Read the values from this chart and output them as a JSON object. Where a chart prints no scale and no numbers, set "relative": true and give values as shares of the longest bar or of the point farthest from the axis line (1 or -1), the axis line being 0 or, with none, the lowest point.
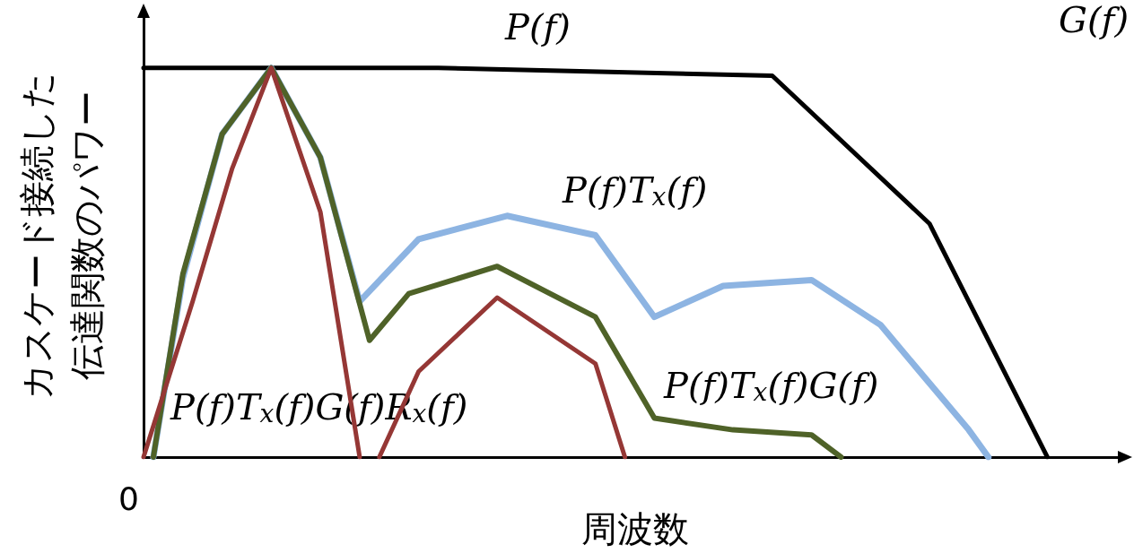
{
  "chart_data": {
    "type": "line",
    "relative": true,
    "xlabel": "周波数",
    "ylabel": "カスケード接続した伝達関数のパワー",
    "legend": false,
    "grid": false,
    "marker": "none",
    "line_style": "solid",
    "annotations": [
      "G(f)",
      "0"
    ],
    "categories": [
      null,
      null,
      null,
      null,
      null,
      null,
      null,
      null,
      null,
      null,
      null,
      null,
      null,
      null,
      null,
      null,
      null,
      null,
      null,
      null,
      null,
      null,
      null,
      null,
      null,
      null,
      null,
      null,
      null,
      null,
      null,
      null,
      null,
      null,
      null,
      null,
      null,
      null,
      null,
      null,
      null,
      null,
      null,
      null,
      null,
      null,
      null,
      null,
      null,
      null,
      null,
      null,
      null,
      null,
      null,
      null,
      null,
      null,
      null,
      null,
      null,
      null,
      null,
      null,
      null,
      null,
      null,
      null,
      null,
      null,
      null,
      null,
      null,
      null,
      null,
      null,
      null,
      null,
      null,
      null,
      null,
      null,
      null,
      null,
      null,
      null,
      null,
      null,
      null,
      null,
      null,
      null,
      null,
      null,
      null,
      null,
      null,
      null,
      null,
      null,
      null
    ],
    "series": [
      {
        "name": "P(f)",
        "color": "#000000",
        "values": [
          1,
          null,
          null,
          null,
          null,
          null,
          null,
          null,
          null,
          null,
          null,
          null,
          null,
          null,
          null,
          null,
          null,
          null,
          null,
          null,
          null,
          null,
          null,
          null,
          null,
          null,
          null,
          null,
          null,
          null,
          1,
          null,
          null,
          null,
          null,
          null,
          null,
          null,
          null,
          null,
          null,
          null,
          null,
          null,
          null,
          null,
          null,
          null,
          null,
          null,
          null,
          null,
          null,
          null,
          null,
          null,
          null,
          null,
          null,
          null,
          null,
          null,
          null,
          null,
          0.98,
          null,
          null,
          null,
          null,
          null,
          null,
          null,
          null,
          null,
          null,
          null,
          null,
          null,
          null,
          null,
          0.6,
          null,
          null,
          null,
          null,
          null,
          null,
          null,
          null,
          null,
          null,
          null,
          0,
          null,
          null,
          null,
          null,
          null,
          null,
          null,
          null
        ]
      },
      {
        "name": "P(f)T$_{x}$(f)",
        "color": "#8db4e2",
        "values": [
          null,
          0,
          null,
          null,
          0.46,
          null,
          null,
          null,
          0.83,
          null,
          null,
          null,
          null,
          1,
          null,
          null,
          null,
          null,
          0.77,
          null,
          null,
          null,
          0.4,
          null,
          null,
          null,
          null,
          null,
          0.56,
          null,
          null,
          null,
          null,
          null,
          null,
          null,
          null,
          0.62,
          null,
          null,
          null,
          null,
          null,
          null,
          null,
          null,
          0.57,
          null,
          null,
          null,
          null,
          null,
          0.36,
          null,
          null,
          null,
          null,
          null,
          null,
          0.44,
          null,
          null,
          null,
          null,
          null,
          null,
          null,
          null,
          0.455,
          null,
          null,
          null,
          null,
          null,
          null,
          0.34,
          null,
          null,
          null,
          null,
          null,
          null,
          null,
          null,
          0.07,
          null,
          0,
          null,
          null,
          null,
          null,
          null,
          null,
          null,
          null,
          null,
          null,
          null,
          null,
          null,
          null
        ]
      },
      {
        "name": "P(f)T$_{x}$(f)G(f)",
        "color": "#4f6228",
        "values": [
          null,
          0,
          null,
          null,
          0.47,
          null,
          null,
          null,
          0.83,
          null,
          null,
          null,
          null,
          1,
          null,
          null,
          null,
          null,
          0.77,
          null,
          null,
          null,
          null,
          0.3,
          null,
          null,
          null,
          0.42,
          null,
          null,
          null,
          null,
          null,
          null,
          null,
          null,
          0.49,
          null,
          null,
          null,
          null,
          null,
          null,
          null,
          null,
          null,
          0.36,
          null,
          null,
          null,
          null,
          null,
          0.1,
          null,
          null,
          null,
          null,
          null,
          null,
          null,
          0.07,
          null,
          null,
          null,
          null,
          null,
          null,
          null,
          0.057,
          null,
          null,
          0,
          null,
          null,
          null,
          null,
          null,
          null,
          null,
          null,
          null,
          null,
          null,
          null,
          null,
          null,
          null,
          null,
          null,
          null,
          null,
          null,
          null,
          null,
          null,
          null,
          null,
          null,
          null,
          null,
          null
        ]
      },
      {
        "name": "P(f)T$_{x}$(f)G(f)R$_{x}$(f)",
        "color": "#953735",
        "values": [
          0,
          null,
          null,
          null,
          null,
          0.4,
          null,
          null,
          null,
          0.74,
          null,
          null,
          null,
          1,
          null,
          null,
          null,
          null,
          0.63,
          null,
          null,
          null,
          0,
          null,
          null,
          null,
          null,
          null,
          null,
          null,
          null,
          null,
          null,
          null,
          null,
          null,
          null,
          null,
          null,
          null,
          null,
          null,
          null,
          null,
          null,
          null,
          null,
          null,
          null,
          null,
          null,
          null,
          null,
          null,
          null,
          null,
          null,
          null,
          null,
          null,
          null,
          null,
          null,
          null,
          null,
          null,
          null,
          null,
          null,
          null,
          null,
          null,
          null,
          null,
          null,
          null,
          null,
          null,
          null,
          null,
          null,
          null,
          null,
          null,
          null,
          null,
          null,
          null,
          null,
          null,
          null,
          null,
          null,
          null,
          null,
          null,
          null,
          null,
          null,
          null,
          null
        ]
      },
      {
        "color": "#953735",
        "values": [
          null,
          null,
          null,
          null,
          null,
          null,
          null,
          null,
          null,
          null,
          null,
          null,
          null,
          null,
          null,
          null,
          null,
          null,
          null,
          null,
          null,
          null,
          null,
          null,
          0,
          null,
          null,
          null,
          0.22,
          null,
          null,
          null,
          null,
          null,
          null,
          null,
          0.41,
          null,
          null,
          null,
          null,
          null,
          null,
          null,
          null,
          null,
          0.24,
          null,
          null,
          0,
          null,
          null,
          null,
          null,
          null,
          null,
          null,
          null,
          null,
          null,
          null,
          null,
          null,
          null,
          null,
          null,
          null,
          null,
          null,
          null,
          null,
          null,
          null,
          null,
          null,
          null,
          null,
          null,
          null,
          null,
          null,
          null,
          null,
          null,
          null,
          null,
          null,
          null,
          null,
          null,
          null,
          null,
          null,
          null,
          null,
          null,
          null,
          null,
          null,
          null,
          null
        ]
      }
    ]
  }
}
